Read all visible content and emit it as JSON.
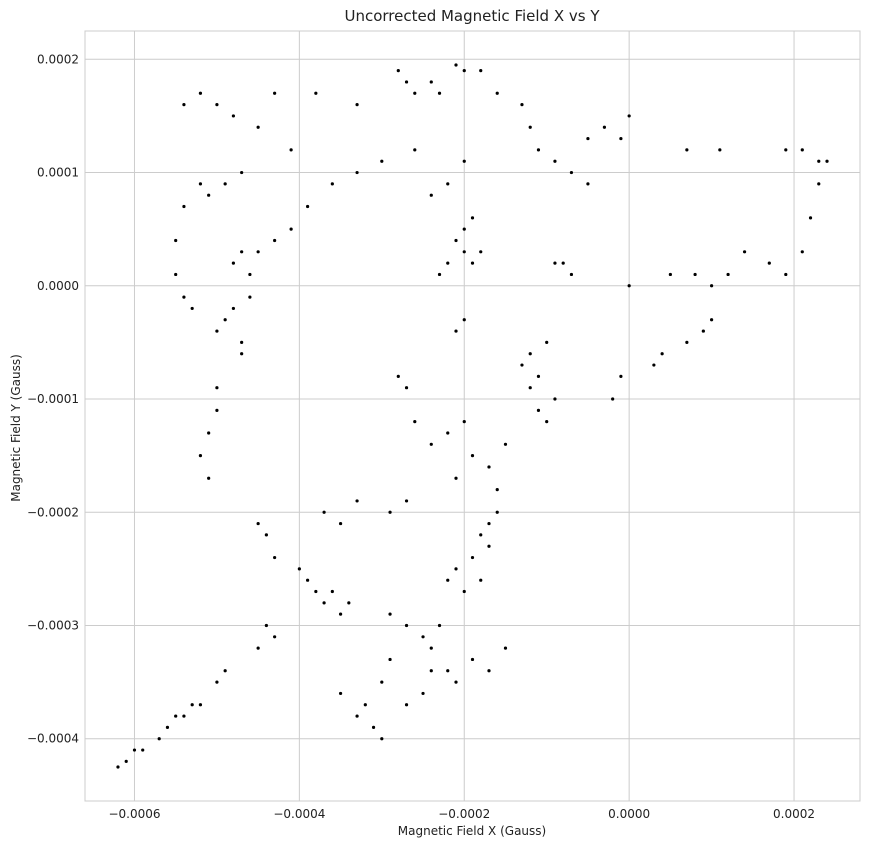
{
  "chart_data": {
    "type": "scatter",
    "title": "Uncorrected Magnetic Field X vs Y",
    "xlabel": "Magnetic Field X (Gauss)",
    "ylabel": "Magnetic Field Y (Gauss)",
    "xlim": [
      -0.00066,
      0.00028
    ],
    "ylim": [
      -0.000455,
      0.000225
    ],
    "x_ticks": [
      -0.0006,
      -0.0004,
      -0.0002,
      0.0,
      0.0002
    ],
    "x_tick_labels": [
      "−0.0006",
      "−0.0004",
      "−0.0002",
      "0.0000",
      "0.0002"
    ],
    "y_ticks": [
      0.0002,
      0.0001,
      0.0,
      -0.0001,
      -0.0002,
      -0.0003,
      -0.0004
    ],
    "y_tick_labels": [
      "0.0002",
      "0.0001",
      "0.0000",
      "−0.0001",
      "−0.0002",
      "−0.0003",
      "−0.0004"
    ],
    "grid": true,
    "marker_color": "#000000",
    "series": [
      {
        "points": [
          [
            -0.00047,
            3e-05
          ],
          [
            -0.00046,
            1e-05
          ],
          [
            -0.00048,
            -2e-05
          ],
          [
            -0.00049,
            -3e-05
          ],
          [
            -0.00047,
            -5e-05
          ],
          [
            -0.00048,
            2e-05
          ],
          [
            -0.00046,
            -1e-05
          ],
          [
            -0.0005,
            -4e-05
          ],
          [
            -0.00045,
            3e-05
          ],
          [
            -0.00047,
            -6e-05
          ],
          [
            -0.0005,
            -0.00011
          ],
          [
            -0.00051,
            -0.00013
          ],
          [
            -0.00052,
            -0.00015
          ],
          [
            -0.0005,
            -9e-05
          ],
          [
            -0.00051,
            -0.00017
          ],
          [
            -0.00044,
            -0.00022
          ],
          [
            -0.00043,
            -0.00024
          ],
          [
            -0.00045,
            -0.00021
          ],
          [
            -0.0004,
            -0.00025
          ],
          [
            -0.00039,
            -0.00026
          ],
          [
            -0.00038,
            -0.00027
          ],
          [
            -0.00037,
            -0.00028
          ],
          [
            -0.00036,
            -0.00027
          ],
          [
            -0.00035,
            -0.00029
          ],
          [
            -0.00034,
            -0.00028
          ],
          [
            -0.00044,
            -0.0003
          ],
          [
            -0.00043,
            -0.00031
          ],
          [
            -0.00045,
            -0.00032
          ],
          [
            -0.00049,
            -0.00034
          ],
          [
            -0.0005,
            -0.00035
          ],
          [
            -0.00053,
            -0.00037
          ],
          [
            -0.00055,
            -0.00038
          ],
          [
            -0.00057,
            -0.0004
          ],
          [
            -0.00059,
            -0.00041
          ],
          [
            -0.00061,
            -0.00042
          ],
          [
            -0.00062,
            -0.000425
          ],
          [
            -0.0006,
            -0.00041
          ],
          [
            -0.00056,
            -0.00039
          ],
          [
            -0.00054,
            -0.00038
          ],
          [
            -0.00052,
            -0.00037
          ],
          [
            -0.00029,
            -0.00029
          ],
          [
            -0.00027,
            -0.0003
          ],
          [
            -0.00025,
            -0.00031
          ],
          [
            -0.00023,
            -0.0003
          ],
          [
            -0.00024,
            -0.00032
          ],
          [
            -0.00022,
            -0.00026
          ],
          [
            -0.00021,
            -0.00025
          ],
          [
            -0.0002,
            -0.00027
          ],
          [
            -0.00019,
            -0.00024
          ],
          [
            -0.00018,
            -0.00022
          ],
          [
            -0.00017,
            -0.00021
          ],
          [
            -0.00016,
            -0.0002
          ],
          [
            -0.00017,
            -0.00023
          ],
          [
            -0.00018,
            -0.00026
          ],
          [
            -0.00016,
            -0.00018
          ],
          [
            -0.00013,
            -7e-05
          ],
          [
            -0.00012,
            -6e-05
          ],
          [
            -0.00011,
            -8e-05
          ],
          [
            -0.0001,
            -5e-05
          ],
          [
            -0.00012,
            -9e-05
          ],
          [
            -0.00011,
            -0.00011
          ],
          [
            -0.0001,
            -0.00012
          ],
          [
            -9e-05,
            -0.0001
          ],
          [
            -0.0002,
            3e-05
          ],
          [
            -0.00019,
            2e-05
          ],
          [
            -0.00021,
            4e-05
          ],
          [
            -0.00018,
            3e-05
          ],
          [
            -0.0002,
            5e-05
          ],
          [
            -0.00022,
            2e-05
          ],
          [
            -0.00019,
            6e-05
          ],
          [
            -0.00023,
            1e-05
          ],
          [
            -0.00021,
            -4e-05
          ],
          [
            -0.0002,
            -3e-05
          ],
          [
            -0.00024,
            8e-05
          ],
          [
            -0.00022,
            9e-05
          ],
          [
            -0.0002,
            0.00011
          ],
          [
            -0.00026,
            0.00012
          ],
          [
            -0.0003,
            0.00011
          ],
          [
            -0.00033,
            0.0001
          ],
          [
            -0.00036,
            9e-05
          ],
          [
            -0.00039,
            7e-05
          ],
          [
            -0.00041,
            5e-05
          ],
          [
            -0.00043,
            4e-05
          ],
          [
            -0.00052,
            9e-05
          ],
          [
            -0.00054,
            7e-05
          ],
          [
            -0.00055,
            4e-05
          ],
          [
            -0.00055,
            1e-05
          ],
          [
            -0.00054,
            -1e-05
          ],
          [
            -0.00053,
            -2e-05
          ],
          [
            -0.00051,
            8e-05
          ],
          [
            -0.00049,
            9e-05
          ],
          [
            -0.00047,
            0.0001
          ],
          [
            -0.00054,
            0.00016
          ],
          [
            -0.00052,
            0.00017
          ],
          [
            -0.0005,
            0.00016
          ],
          [
            -0.00048,
            0.00015
          ],
          [
            -0.00045,
            0.00014
          ],
          [
            -0.00043,
            0.00017
          ],
          [
            -0.00041,
            0.00012
          ],
          [
            -0.00038,
            0.00017
          ],
          [
            -0.00033,
            0.00016
          ],
          [
            -0.00028,
            0.00019
          ],
          [
            -0.00027,
            0.00018
          ],
          [
            -0.00026,
            0.00017
          ],
          [
            -0.00024,
            0.00018
          ],
          [
            -0.00023,
            0.00017
          ],
          [
            -0.00021,
            0.000195
          ],
          [
            -0.0002,
            0.00019
          ],
          [
            -0.00018,
            0.00019
          ],
          [
            -0.00016,
            0.00017
          ],
          [
            -0.00013,
            0.00016
          ],
          [
            -0.00012,
            0.00014
          ],
          [
            -0.00011,
            0.00012
          ],
          [
            -9e-05,
            0.00011
          ],
          [
            -7e-05,
            0.0001
          ],
          [
            -5e-05,
            0.00013
          ],
          [
            -3e-05,
            0.00014
          ],
          [
            -1e-05,
            0.00013
          ],
          [
            0.0,
            0.00015
          ],
          [
            7e-05,
            0.00012
          ],
          [
            0.00011,
            0.00012
          ],
          [
            0.00019,
            0.00012
          ],
          [
            0.00021,
            0.00012
          ],
          [
            0.00023,
            0.00011
          ],
          [
            0.00024,
            0.00011
          ],
          [
            0.00023,
            9e-05
          ],
          [
            0.00022,
            6e-05
          ],
          [
            0.00021,
            3e-05
          ],
          [
            0.00019,
            1e-05
          ],
          [
            0.00017,
            2e-05
          ],
          [
            0.00014,
            3e-05
          ],
          [
            0.00012,
            1e-05
          ],
          [
            0.0001,
            0.0
          ],
          [
            8e-05,
            1e-05
          ],
          [
            5e-05,
            1e-05
          ],
          [
            0.0001,
            -3e-05
          ],
          [
            9e-05,
            -4e-05
          ],
          [
            7e-05,
            -5e-05
          ],
          [
            4e-05,
            -6e-05
          ],
          [
            3e-05,
            -7e-05
          ],
          [
            0.0,
            0.0
          ],
          [
            -1e-05,
            -8e-05
          ],
          [
            -2e-05,
            -0.0001
          ],
          [
            -7e-05,
            1e-05
          ],
          [
            -8e-05,
            2e-05
          ],
          [
            -9e-05,
            2e-05
          ],
          [
            -5e-05,
            9e-05
          ],
          [
            -0.00029,
            -0.00033
          ],
          [
            -0.0003,
            -0.00035
          ],
          [
            -0.00032,
            -0.00037
          ],
          [
            -0.00031,
            -0.00039
          ],
          [
            -0.0003,
            -0.0004
          ],
          [
            -0.00033,
            -0.00038
          ],
          [
            -0.00035,
            -0.00036
          ],
          [
            -0.00027,
            -0.00037
          ],
          [
            -0.00025,
            -0.00036
          ],
          [
            -0.00024,
            -0.00034
          ],
          [
            -0.00022,
            -0.00034
          ],
          [
            -0.00021,
            -0.00035
          ],
          [
            -0.00019,
            -0.00033
          ],
          [
            -0.00017,
            -0.00034
          ],
          [
            -0.00015,
            -0.00032
          ],
          [
            -0.00028,
            -8e-05
          ],
          [
            -0.00027,
            -9e-05
          ],
          [
            -0.00026,
            -0.00012
          ],
          [
            -0.00024,
            -0.00014
          ],
          [
            -0.00022,
            -0.00013
          ],
          [
            -0.0002,
            -0.00012
          ],
          [
            -0.00019,
            -0.00015
          ],
          [
            -0.00021,
            -0.00017
          ],
          [
            -0.00017,
            -0.00016
          ],
          [
            -0.00015,
            -0.00014
          ],
          [
            -0.00037,
            -0.0002
          ],
          [
            -0.00035,
            -0.00021
          ],
          [
            -0.00033,
            -0.00019
          ],
          [
            -0.00029,
            -0.0002
          ],
          [
            -0.00027,
            -0.00019
          ]
        ]
      }
    ]
  }
}
